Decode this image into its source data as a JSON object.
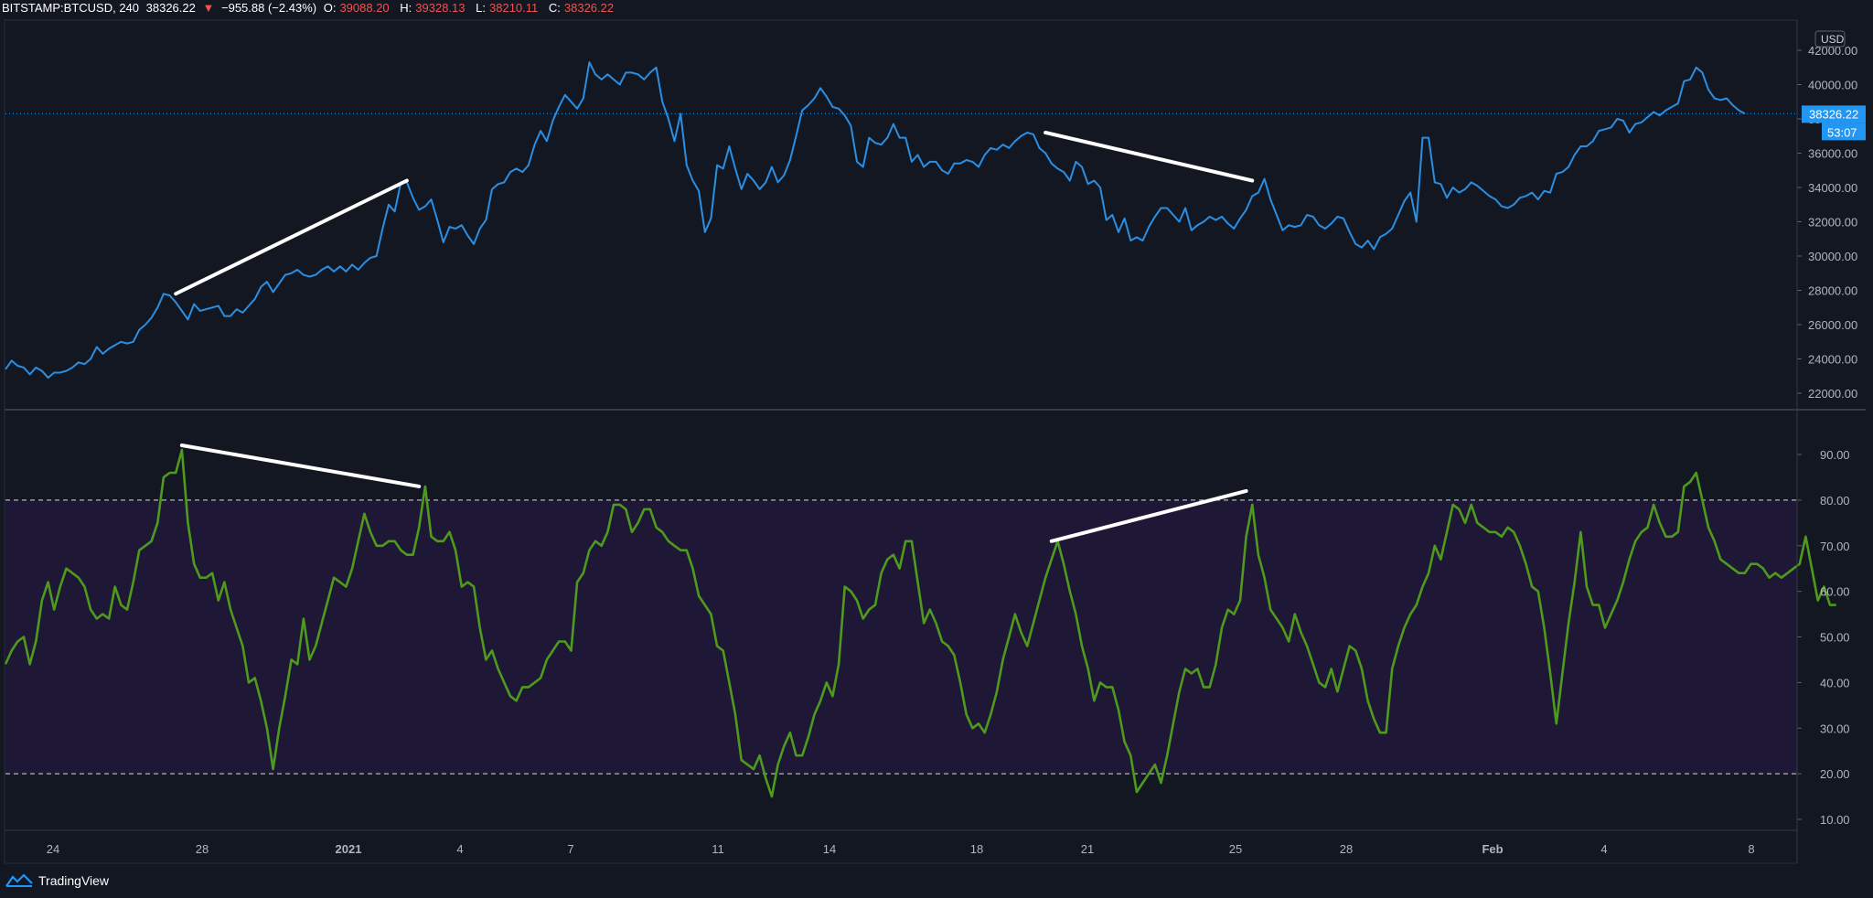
{
  "header": {
    "symbol": "BITSTAMP:BTCUSD, 240",
    "last": "38326.22",
    "change": "−955.88 (−2.43%)",
    "open_label": "O:",
    "open": "39088.20",
    "high_label": "H:",
    "high": "39328.13",
    "low_label": "L:",
    "low": "38210.11",
    "close_label": "C:",
    "close": "38326.22"
  },
  "price_scale": {
    "currency": "USD",
    "ticks": [
      "42000.00",
      "40000.00",
      "38000.00",
      "36000.00",
      "34000.00",
      "32000.00",
      "30000.00",
      "28000.00",
      "26000.00",
      "24000.00",
      "22000.00"
    ],
    "last_label": "38326.22",
    "countdown": "53:07"
  },
  "rsi_scale": {
    "ticks": [
      "90.00",
      "80.00",
      "70.00",
      "60.00",
      "50.00",
      "40.00",
      "30.00",
      "20.00",
      "10.00"
    ]
  },
  "time_axis": {
    "ticks": [
      "24",
      "28",
      "2021",
      "4",
      "7",
      "11",
      "14",
      "18",
      "21",
      "25",
      "28",
      "Feb",
      "4",
      "8"
    ]
  },
  "footer": {
    "brand": "TradingView"
  },
  "colors": {
    "background": "#131722",
    "price_line": "#2a8fe3",
    "rsi_line": "#4e9a1c",
    "rsi_band": "#1f1736",
    "trendline": "#ffffff",
    "last_price_tag": "#2196f3"
  },
  "chart_data": [
    {
      "type": "line",
      "series": [
        {
          "values": [
            23400,
            23900,
            23600,
            23500,
            23100,
            23500,
            23300,
            22900,
            23200,
            23200,
            23300,
            23500,
            23800,
            23700,
            24000,
            24700,
            24300,
            24600,
            24800,
            25000,
            24900,
            25000,
            25700,
            26000,
            26400,
            27000,
            27800,
            27700,
            27300,
            26800,
            26300,
            27200,
            26800,
            26900,
            27000,
            27100,
            26500,
            26500,
            26900,
            26700,
            27100,
            27500,
            28200,
            28500,
            27900,
            28400,
            28900,
            29000,
            29200,
            28900,
            28800,
            28900,
            29200,
            29400,
            29100,
            29400,
            29100,
            29500,
            29200,
            29600,
            29900,
            30000,
            31600,
            33000,
            32600,
            34300,
            34300,
            33400,
            32700,
            32900,
            33300,
            32100,
            30800,
            31700,
            31600,
            31800,
            31200,
            30700,
            31600,
            32100,
            33900,
            34200,
            34300,
            34900,
            35100,
            34900,
            35300,
            36500,
            37300,
            36700,
            37900,
            38700,
            39400,
            39000,
            38600,
            39200,
            41300,
            40600,
            40300,
            40600,
            40300,
            40000,
            40700,
            40700,
            40600,
            40300,
            40700,
            41000,
            39000,
            38000,
            36700,
            38300,
            35300,
            34400,
            33800,
            31400,
            32200,
            35300,
            35100,
            36400,
            35100,
            33900,
            34800,
            34400,
            33900,
            34300,
            35200,
            34300,
            34700,
            35600,
            37000,
            38500,
            38800,
            39200,
            39800,
            39300,
            38700,
            38600,
            38200,
            37600,
            35500,
            35200,
            36900,
            36600,
            36500,
            36900,
            37700,
            36900,
            36900,
            35500,
            35900,
            35200,
            35500,
            35500,
            35000,
            34800,
            35400,
            35400,
            35600,
            35500,
            35200,
            35900,
            36300,
            36200,
            36500,
            36300,
            36700,
            37000,
            37200,
            37100,
            36300,
            36000,
            35400,
            35100,
            34900,
            34400,
            35500,
            35200,
            34200,
            34400,
            34000,
            32100,
            32400,
            31400,
            32200,
            30900,
            31100,
            30900,
            31700,
            32300,
            32800,
            32800,
            32400,
            32000,
            32800,
            31500,
            31800,
            32000,
            32300,
            32100,
            32300,
            31900,
            31600,
            32200,
            32700,
            33500,
            33700,
            34500,
            33300,
            32400,
            31500,
            31800,
            31700,
            31800,
            32400,
            32300,
            31800,
            31600,
            31900,
            32300,
            32200,
            31400,
            30700,
            30500,
            30900,
            30400,
            31100,
            31300,
            31600,
            32400,
            33200,
            33700,
            32000,
            36900,
            36900,
            34300,
            34200,
            33400,
            34000,
            33700,
            33900,
            34300,
            34100,
            33800,
            33500,
            33300,
            32900,
            32800,
            33000,
            33400,
            33500,
            33700,
            33300,
            33800,
            33700,
            34800,
            34900,
            35200,
            35900,
            36400,
            36400,
            36700,
            37300,
            37400,
            37500,
            38000,
            37900,
            37200,
            37700,
            37800,
            38100,
            38400,
            38200,
            38500,
            38700,
            38900,
            40200,
            40300,
            41000,
            40700,
            39700,
            39200,
            39100,
            39200,
            38800,
            38500,
            38300
          ]
        }
      ],
      "ylim": [
        21000,
        43000
      ],
      "trendlines": [
        {
          "from": {
            "index": 28,
            "value": 27800
          },
          "to": {
            "index": 66,
            "value": 34400
          }
        },
        {
          "from": {
            "index": 171,
            "value": 37200
          },
          "to": {
            "index": 205,
            "value": 34400
          }
        }
      ]
    },
    {
      "type": "line",
      "series": [
        {
          "values": [
            44,
            47,
            49,
            50,
            44,
            49,
            58,
            62,
            56,
            61,
            65,
            64,
            63,
            61,
            56,
            54,
            55,
            54,
            61,
            57,
            56,
            62,
            69,
            70,
            71,
            75,
            85,
            86,
            86,
            91,
            75,
            66,
            63,
            63,
            64,
            58,
            62,
            56,
            52,
            48,
            40,
            41,
            36,
            30,
            21,
            30,
            37,
            45,
            44,
            54,
            45,
            48,
            53,
            58,
            63,
            62,
            61,
            65,
            71,
            77,
            73,
            70,
            70,
            71,
            71,
            69,
            68,
            68,
            74,
            83,
            72,
            71,
            71,
            73,
            69,
            61,
            62,
            61,
            52,
            45,
            47,
            43,
            40,
            37,
            36,
            39,
            39,
            40,
            41,
            45,
            47,
            49,
            49,
            47,
            62,
            64,
            69,
            71,
            70,
            73,
            79,
            79,
            78,
            73,
            75,
            78,
            78,
            74,
            73,
            71,
            70,
            69,
            69,
            65,
            59,
            57,
            55,
            48,
            47,
            40,
            33,
            23,
            22,
            21,
            24,
            19,
            15,
            22,
            26,
            29,
            24,
            24,
            28,
            33,
            36,
            40,
            37,
            44,
            61,
            60,
            58,
            54,
            56,
            57,
            64,
            67,
            68,
            65,
            71,
            71,
            62,
            53,
            56,
            53,
            49,
            48,
            46,
            40,
            33,
            30,
            31,
            29,
            33,
            38,
            45,
            50,
            55,
            51,
            48,
            53,
            58,
            63,
            67,
            71,
            66,
            60,
            55,
            48,
            43,
            36,
            40,
            39,
            39,
            34,
            27,
            24,
            16,
            18,
            20,
            22,
            18,
            24,
            31,
            38,
            43,
            42,
            43,
            39,
            39,
            44,
            52,
            56,
            55,
            58,
            72,
            79,
            68,
            63,
            56,
            54,
            52,
            49,
            55,
            51,
            48,
            44,
            40,
            39,
            43,
            38,
            43,
            48,
            47,
            43,
            36,
            32,
            29,
            29,
            43,
            48,
            52,
            55,
            57,
            61,
            64,
            70,
            67,
            73,
            79,
            78,
            75,
            79,
            75,
            74,
            73,
            73,
            72,
            74,
            73,
            70,
            66,
            61,
            60,
            52,
            42,
            31,
            42,
            53,
            62,
            73,
            61,
            57,
            57,
            52,
            55,
            58,
            62,
            67,
            71,
            73,
            74,
            79,
            75,
            72,
            72,
            73,
            83,
            84,
            86,
            80,
            74,
            71,
            67,
            66,
            65,
            64,
            64,
            66,
            66,
            65,
            63,
            64,
            63,
            64,
            65,
            66,
            72,
            65,
            58,
            61,
            57,
            57
          ]
        }
      ],
      "ylim": [
        6,
        98
      ],
      "bands": [
        20,
        80
      ],
      "trendlines": [
        {
          "from": {
            "index": 29,
            "value": 92
          },
          "to": {
            "index": 68,
            "value": 83
          }
        },
        {
          "from": {
            "index": 172,
            "value": 71
          },
          "to": {
            "index": 204,
            "value": 82
          }
        }
      ]
    }
  ]
}
